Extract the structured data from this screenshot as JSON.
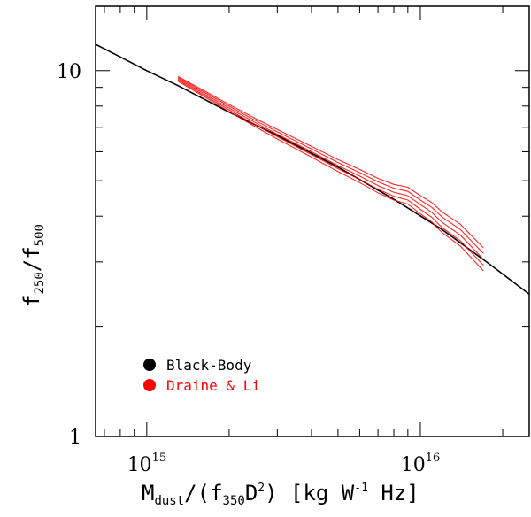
{
  "chart_data": {
    "type": "line",
    "xlabel": "M_dust/(f_350 D^2) [kg W^-1 Hz]",
    "ylabel": "f_250/f_500",
    "xscale": "log",
    "yscale": "log",
    "xlim": [
      650000000000000.0,
      2.5e+16
    ],
    "ylim": [
      1,
      15
    ],
    "grid": false,
    "legend_position": "bottom-left",
    "x_ticks": [
      {
        "value": 1000000000000000.0,
        "mantissa": "10",
        "exponent": "15"
      },
      {
        "value": 1e+16,
        "mantissa": "10",
        "exponent": "16"
      }
    ],
    "y_ticks": [
      {
        "value": 1,
        "label": "1"
      },
      {
        "value": 10,
        "label": "10"
      }
    ],
    "legend": [
      {
        "label": "Black-Body",
        "color": "#000000"
      },
      {
        "label": "Draine & Li",
        "color": "#ff0000"
      }
    ],
    "series": [
      {
        "name": "Black-Body",
        "color": "#000000",
        "x": [
          650000000000000.0,
          800000000000000.0,
          1000000000000000.0,
          1300000000000000.0,
          2000000000000000.0,
          3000000000000000.0,
          5000000000000000.0,
          8000000000000000.0,
          1.2e+16,
          1.8e+16,
          2.5e+16
        ],
        "y": [
          11.8,
          10.9,
          10.0,
          9.1,
          7.7,
          6.65,
          5.45,
          4.45,
          3.68,
          2.95,
          2.45
        ]
      },
      {
        "name": "Draine & Li",
        "color": "#ff0000",
        "x": [
          1300000000000000.0,
          1600000000000000.0,
          2000000000000000.0,
          2500000000000000.0,
          3000000000000000.0,
          4000000000000000.0,
          5000000000000000.0,
          6000000000000000.0,
          7000000000000000.0,
          8000000000000000.0,
          9000000000000000.0,
          1e+16,
          1.1e+16,
          1.2e+16,
          1.4e+16,
          1.7e+16
        ],
        "y": [
          9.5,
          8.7,
          7.9,
          7.2,
          6.7,
          6.0,
          5.5,
          5.15,
          4.85,
          4.65,
          4.55,
          4.3,
          4.1,
          3.85,
          3.55,
          3.05
        ]
      }
    ]
  }
}
